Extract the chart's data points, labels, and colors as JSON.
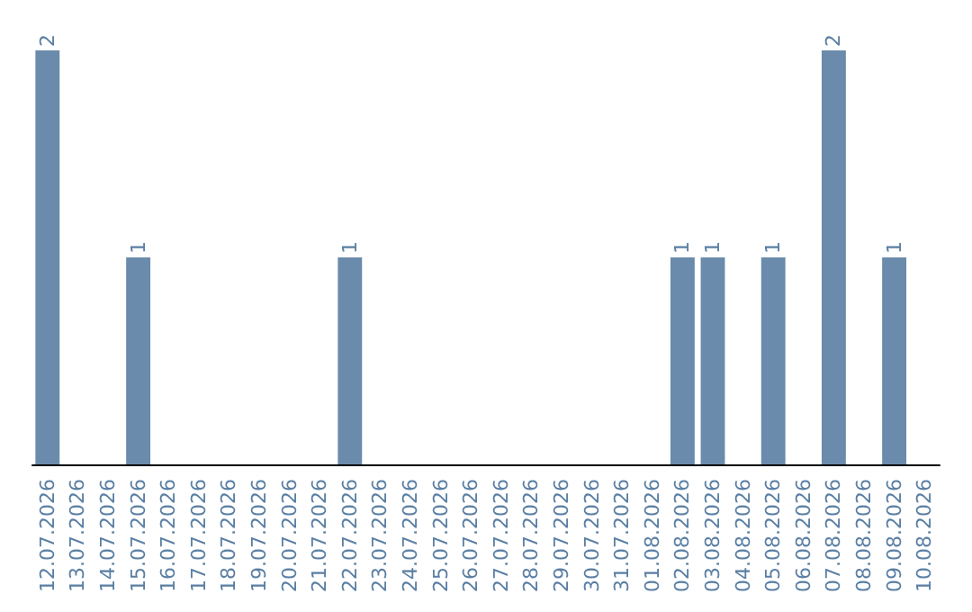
{
  "chart_data": {
    "type": "bar",
    "categories": [
      "12.07.2026",
      "13.07.2026",
      "14.07.2026",
      "15.07.2026",
      "16.07.2026",
      "17.07.2026",
      "18.07.2026",
      "19.07.2026",
      "20.07.2026",
      "21.07.2026",
      "22.07.2026",
      "23.07.2026",
      "24.07.2026",
      "25.07.2026",
      "26.07.2026",
      "27.07.2026",
      "28.07.2026",
      "29.07.2026",
      "30.07.2026",
      "31.07.2026",
      "01.08.2026",
      "02.08.2026",
      "03.08.2026",
      "04.08.2026",
      "05.08.2026",
      "06.08.2026",
      "07.08.2026",
      "08.08.2026",
      "09.08.2026",
      "10.08.2026"
    ],
    "values": [
      2,
      0,
      0,
      1,
      0,
      0,
      0,
      0,
      0,
      0,
      1,
      0,
      0,
      0,
      0,
      0,
      0,
      0,
      0,
      0,
      0,
      1,
      1,
      0,
      1,
      0,
      2,
      0,
      1,
      0
    ],
    "value_labels": [
      "2",
      null,
      null,
      "1",
      null,
      null,
      null,
      null,
      null,
      null,
      "1",
      null,
      null,
      null,
      null,
      null,
      null,
      null,
      null,
      null,
      null,
      "1",
      "1",
      null,
      "1",
      null,
      "2",
      null,
      "1",
      null
    ],
    "color": "#6a8bab",
    "tick_labels": "x"
  }
}
